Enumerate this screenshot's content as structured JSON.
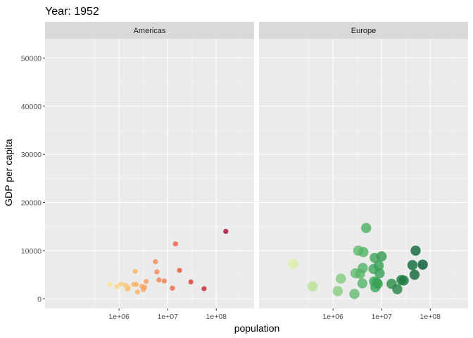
{
  "title": "Year: 1952",
  "chart_data": {
    "type": "scatter",
    "title": "Year: 1952",
    "xlabel": "population",
    "ylabel": "GDP per capita",
    "x_scale": "log10",
    "xlim": [
      30000,
      600000000
    ],
    "ylim": [
      -2000,
      54000
    ],
    "x_tick_values": [
      1000000,
      10000000,
      100000000
    ],
    "x_tick_labels": [
      "1e+06",
      "1e+07",
      "1e+08"
    ],
    "y_ticks": [
      0,
      10000,
      20000,
      30000,
      40000,
      50000
    ],
    "grid": true,
    "facets": [
      {
        "name": "Americas",
        "point_size": "small",
        "color_scale": [
          "#fee08b",
          "#fdae61",
          "#f46d43",
          "#d73027",
          "#a50026"
        ],
        "points": [
          {
            "x": 650000,
            "y": 3000
          },
          {
            "x": 900000,
            "y": 2500
          },
          {
            "x": 1100000,
            "y": 3100
          },
          {
            "x": 1350000,
            "y": 2800
          },
          {
            "x": 1500000,
            "y": 2000
          },
          {
            "x": 1550000,
            "y": 2300
          },
          {
            "x": 2000000,
            "y": 3000
          },
          {
            "x": 2150000,
            "y": 5700
          },
          {
            "x": 2250000,
            "y": 3000
          },
          {
            "x": 2400000,
            "y": 1400
          },
          {
            "x": 2950000,
            "y": 2600
          },
          {
            "x": 3150000,
            "y": 1900
          },
          {
            "x": 3350000,
            "y": 2400
          },
          {
            "x": 3600000,
            "y": 3600
          },
          {
            "x": 5600000,
            "y": 7700
          },
          {
            "x": 6000000,
            "y": 5600
          },
          {
            "x": 6600000,
            "y": 3900
          },
          {
            "x": 8500000,
            "y": 3700
          },
          {
            "x": 12500000,
            "y": 2200
          },
          {
            "x": 14500000,
            "y": 11400
          },
          {
            "x": 17500000,
            "y": 5900
          },
          {
            "x": 30000000,
            "y": 3500
          },
          {
            "x": 56000000,
            "y": 2100
          },
          {
            "x": 157000000,
            "y": 14000
          }
        ]
      },
      {
        "name": "Europe",
        "point_size": "large",
        "color_scale": [
          "#d9f0a3",
          "#addd8e",
          "#78c679",
          "#41ab5d",
          "#238443",
          "#005a32"
        ],
        "points": [
          {
            "x": 150000,
            "y": 7300
          },
          {
            "x": 380000,
            "y": 2600
          },
          {
            "x": 1250000,
            "y": 1600
          },
          {
            "x": 1450000,
            "y": 4200
          },
          {
            "x": 2750000,
            "y": 1000
          },
          {
            "x": 2900000,
            "y": 5300
          },
          {
            "x": 3300000,
            "y": 10000
          },
          {
            "x": 3600000,
            "y": 5200
          },
          {
            "x": 4000000,
            "y": 3200
          },
          {
            "x": 4100000,
            "y": 6400
          },
          {
            "x": 4200000,
            "y": 9700
          },
          {
            "x": 4800000,
            "y": 14700
          },
          {
            "x": 6800000,
            "y": 6200
          },
          {
            "x": 7000000,
            "y": 3600
          },
          {
            "x": 7200000,
            "y": 8500
          },
          {
            "x": 7400000,
            "y": 2400
          },
          {
            "x": 7900000,
            "y": 3400
          },
          {
            "x": 8300000,
            "y": 3100
          },
          {
            "x": 8700000,
            "y": 6900
          },
          {
            "x": 9100000,
            "y": 5300
          },
          {
            "x": 10000000,
            "y": 8800
          },
          {
            "x": 16000000,
            "y": 3100
          },
          {
            "x": 21000000,
            "y": 2000
          },
          {
            "x": 25500000,
            "y": 3900
          },
          {
            "x": 28500000,
            "y": 3800
          },
          {
            "x": 43000000,
            "y": 7000
          },
          {
            "x": 47500000,
            "y": 5000
          },
          {
            "x": 50000000,
            "y": 10000
          },
          {
            "x": 70000000,
            "y": 7100
          }
        ]
      }
    ]
  }
}
